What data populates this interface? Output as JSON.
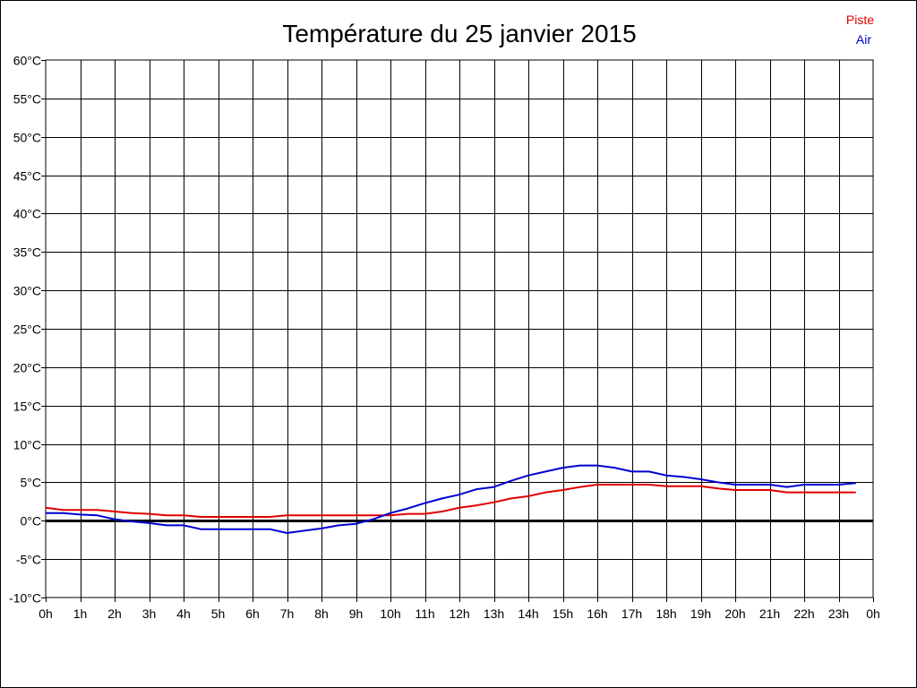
{
  "chart_data": {
    "type": "line",
    "title": "Température du 25 janvier 2015",
    "x_tick_labels": [
      "0h",
      "1h",
      "2h",
      "3h",
      "4h",
      "5h",
      "6h",
      "7h",
      "8h",
      "9h",
      "10h",
      "11h",
      "12h",
      "13h",
      "14h",
      "15h",
      "16h",
      "17h",
      "18h",
      "19h",
      "20h",
      "21h",
      "22h",
      "23h",
      "0h"
    ],
    "y_tick_labels": [
      "-10°C",
      "-5°C",
      "0°C",
      "5°C",
      "10°C",
      "15°C",
      "20°C",
      "25°C",
      "30°C",
      "35°C",
      "40°C",
      "45°C",
      "50°C",
      "55°C",
      "60°C"
    ],
    "xlim": [
      0,
      24
    ],
    "ylim": [
      -10,
      60
    ],
    "grid": true,
    "legend_position": "top-right",
    "series": [
      {
        "name": "Piste",
        "color": "#e00000",
        "x": [
          0,
          0.5,
          1,
          1.5,
          2,
          2.5,
          3,
          3.5,
          4,
          4.5,
          5,
          5.5,
          6,
          6.5,
          7,
          7.5,
          8,
          8.5,
          9,
          9.5,
          10,
          10.5,
          11,
          11.5,
          12,
          12.5,
          13,
          13.5,
          14,
          14.5,
          15,
          15.5,
          16,
          16.5,
          17,
          17.5,
          18,
          18.5,
          19,
          19.5,
          20,
          20.5,
          21,
          21.5,
          22,
          22.5,
          23,
          23.5
        ],
        "y": [
          1.7,
          1.4,
          1.4,
          1.4,
          1.2,
          1.0,
          0.9,
          0.7,
          0.7,
          0.5,
          0.5,
          0.5,
          0.5,
          0.5,
          0.7,
          0.7,
          0.7,
          0.7,
          0.7,
          0.7,
          0.7,
          0.9,
          0.9,
          1.2,
          1.7,
          2.0,
          2.4,
          2.9,
          3.2,
          3.7,
          4.0,
          4.4,
          4.7,
          4.7,
          4.7,
          4.7,
          4.5,
          4.5,
          4.5,
          4.2,
          4.0,
          4.0,
          4.0,
          3.7,
          3.7,
          3.7,
          3.7,
          3.7
        ]
      },
      {
        "name": "Air",
        "color": "#0000d0",
        "x": [
          0,
          0.5,
          1,
          1.5,
          2,
          2.5,
          3,
          3.5,
          4,
          4.5,
          5,
          5.5,
          6,
          6.5,
          7,
          7.5,
          8,
          8.5,
          9,
          9.5,
          10,
          10.5,
          11,
          11.5,
          12,
          12.5,
          13,
          13.5,
          14,
          14.5,
          15,
          15.5,
          16,
          16.5,
          17,
          17.5,
          18,
          18.5,
          19,
          19.5,
          20,
          20.5,
          21,
          21.5,
          22,
          22.5,
          23,
          23.5
        ],
        "y": [
          1.0,
          1.0,
          0.8,
          0.7,
          0.2,
          -0.1,
          -0.3,
          -0.6,
          -0.6,
          -1.1,
          -1.1,
          -1.1,
          -1.1,
          -1.1,
          -1.6,
          -1.3,
          -1.0,
          -0.6,
          -0.4,
          0.2,
          1.0,
          1.6,
          2.3,
          2.9,
          3.4,
          4.1,
          4.4,
          5.2,
          5.9,
          6.4,
          6.9,
          7.2,
          7.2,
          6.9,
          6.4,
          6.4,
          5.9,
          5.7,
          5.4,
          5.0,
          4.7,
          4.7,
          4.7,
          4.4,
          4.7,
          4.7,
          4.7,
          4.9
        ]
      }
    ]
  }
}
